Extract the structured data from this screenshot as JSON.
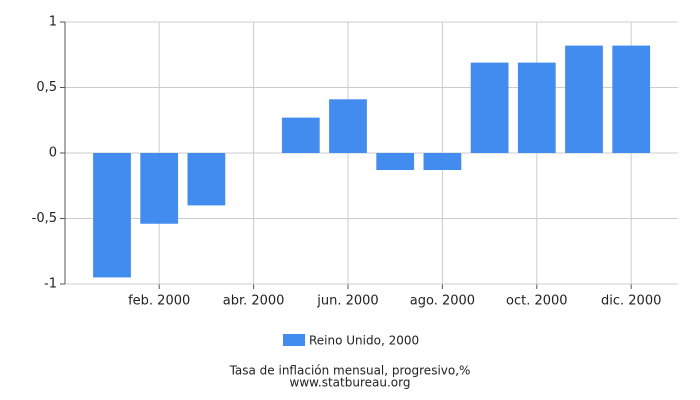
{
  "chart_data": {
    "type": "bar",
    "categories": [
      null,
      "feb. 2000",
      null,
      "abr. 2000",
      null,
      "jun. 2000",
      null,
      "ago. 2000",
      null,
      "oct. 2000",
      null,
      "dic. 2000"
    ],
    "series": [
      {
        "name": "Reino Unido, 2000",
        "color": "#428bef",
        "values": [
          -0.95,
          -0.54,
          -0.4,
          0,
          0.27,
          0.41,
          -0.13,
          -0.13,
          0.69,
          0.69,
          0.82,
          0.82
        ]
      }
    ],
    "ylim": [
      -1,
      1
    ],
    "yticks": [
      -1,
      {
        "value": -0.5,
        "label": "-0,5"
      },
      0,
      {
        "value": 0.5,
        "label": "0,5"
      },
      1
    ],
    "grid": true,
    "title": "Tasa de inflación mensual, progresivo,%",
    "subtitle": "www.statbureau.org"
  }
}
